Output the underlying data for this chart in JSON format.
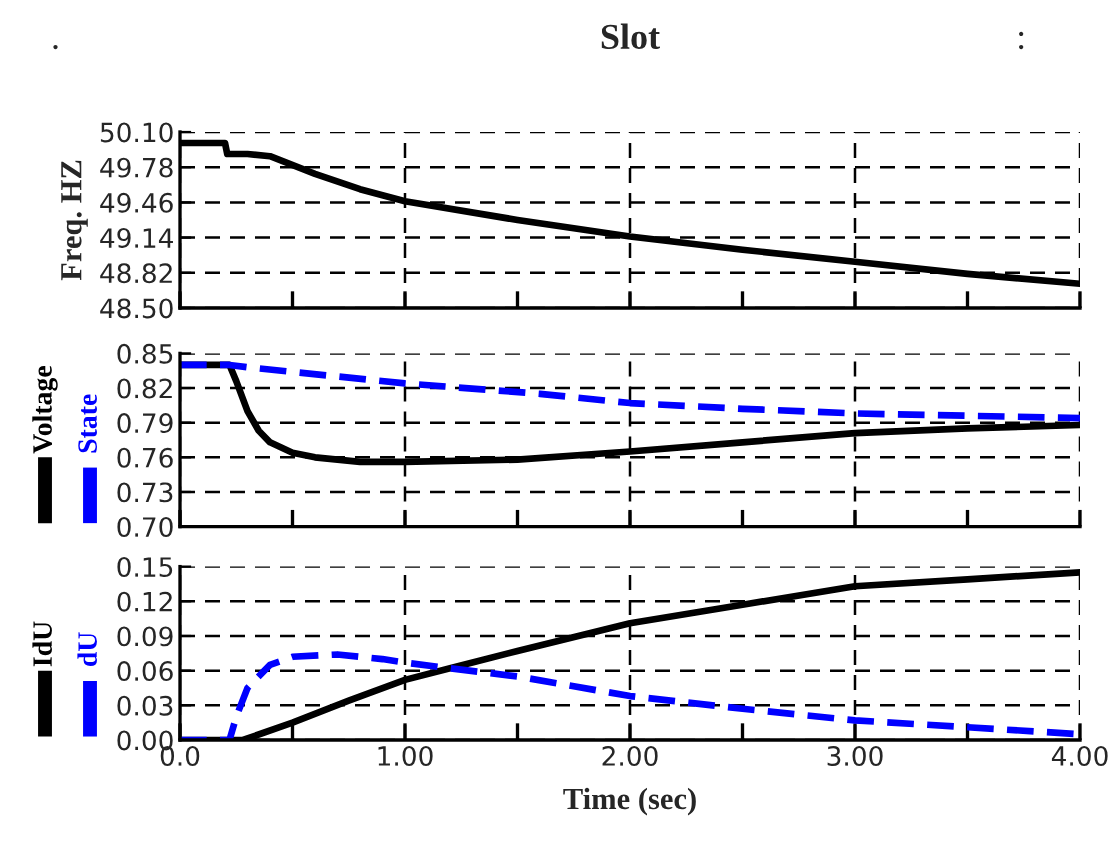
{
  "chart_data": [
    {
      "type": "line",
      "title": "Slot",
      "ylabel": "Freq. HZ",
      "annotations": [
        ".",
        ":"
      ],
      "tick_labels": "y",
      "grid": true,
      "xlim": [
        0,
        4
      ],
      "xticks": [
        {
          "value": 0,
          "label": null
        },
        {
          "value": 0.5,
          "label": null
        },
        {
          "value": 1,
          "label": null
        },
        {
          "value": 1.5,
          "label": null
        },
        {
          "value": 2,
          "label": null
        },
        {
          "value": 2.5,
          "label": null
        },
        {
          "value": 3,
          "label": null
        },
        {
          "value": 3.5,
          "label": null
        },
        {
          "value": 4,
          "label": null
        }
      ],
      "ylim": [
        48.5,
        50.1
      ],
      "yticks": [
        {
          "value": 48.5,
          "label": "48.50"
        },
        {
          "value": 48.82,
          "label": "48.82"
        },
        {
          "value": 49.14,
          "label": "49.14"
        },
        {
          "value": 49.46,
          "label": "49.46"
        },
        {
          "value": 49.78,
          "label": "49.78"
        },
        {
          "value": 50.1,
          "label": "50.10"
        }
      ],
      "series": [
        {
          "color": "#000000",
          "line_style": "solid",
          "x": [
            0,
            0.2,
            0.21,
            0.3,
            0.4,
            0.6,
            0.8,
            1.0,
            1.5,
            2.0,
            2.5,
            3.0,
            3.5,
            4.0
          ],
          "values": [
            50.0,
            50.0,
            49.9,
            49.9,
            49.88,
            49.72,
            49.58,
            49.47,
            49.3,
            49.15,
            49.03,
            48.92,
            48.81,
            48.72
          ]
        }
      ]
    },
    {
      "type": "line",
      "legend": "left",
      "tick_labels": "y",
      "grid": true,
      "xlim": [
        0,
        4
      ],
      "xticks": [
        {
          "value": 0,
          "label": null
        },
        {
          "value": 0.5,
          "label": null
        },
        {
          "value": 1,
          "label": null
        },
        {
          "value": 1.5,
          "label": null
        },
        {
          "value": 2,
          "label": null
        },
        {
          "value": 2.5,
          "label": null
        },
        {
          "value": 3,
          "label": null
        },
        {
          "value": 3.5,
          "label": null
        },
        {
          "value": 4,
          "label": null
        }
      ],
      "ylim": [
        0.7,
        0.85
      ],
      "yticks": [
        {
          "value": 0.7,
          "label": "0.70"
        },
        {
          "value": 0.73,
          "label": "0.73"
        },
        {
          "value": 0.76,
          "label": "0.76"
        },
        {
          "value": 0.79,
          "label": "0.79"
        },
        {
          "value": 0.82,
          "label": "0.82"
        },
        {
          "value": 0.85,
          "label": "0.85"
        }
      ],
      "series": [
        {
          "name": "Voltage",
          "color": "#000000",
          "line_style": "solid",
          "x": [
            0,
            0.22,
            0.25,
            0.3,
            0.35,
            0.4,
            0.5,
            0.6,
            0.8,
            1.0,
            1.5,
            2.0,
            2.5,
            3.0,
            3.5,
            4.0
          ],
          "values": [
            0.84,
            0.84,
            0.826,
            0.8,
            0.783,
            0.773,
            0.764,
            0.76,
            0.756,
            0.756,
            0.758,
            0.765,
            0.773,
            0.781,
            0.785,
            0.788
          ]
        },
        {
          "name": "State",
          "color": "#0000ff",
          "line_style": "dashed",
          "x": [
            0,
            0.22,
            0.3,
            0.5,
            1.0,
            1.6,
            2.0,
            2.5,
            3.0,
            3.5,
            4.0
          ],
          "values": [
            0.84,
            0.84,
            0.838,
            0.834,
            0.824,
            0.815,
            0.807,
            0.802,
            0.798,
            0.796,
            0.794
          ]
        }
      ]
    },
    {
      "type": "line",
      "legend": "left",
      "xlabel": "Time (sec)",
      "grid": true,
      "xlim": [
        0,
        4
      ],
      "xticks": [
        {
          "value": 0,
          "label": "0.0"
        },
        {
          "value": 0.5,
          "label": null
        },
        {
          "value": 1,
          "label": "1.00"
        },
        {
          "value": 1.5,
          "label": null
        },
        {
          "value": 2,
          "label": "2.00"
        },
        {
          "value": 2.5,
          "label": null
        },
        {
          "value": 3,
          "label": "3.00"
        },
        {
          "value": 3.5,
          "label": null
        },
        {
          "value": 4,
          "label": "4.00"
        }
      ],
      "ylim": [
        0,
        0.15
      ],
      "yticks": [
        {
          "value": 0,
          "label": "0.00"
        },
        {
          "value": 0.03,
          "label": "0.03"
        },
        {
          "value": 0.06,
          "label": "0.06"
        },
        {
          "value": 0.09,
          "label": "0.09"
        },
        {
          "value": 0.12,
          "label": "0.12"
        },
        {
          "value": 0.15,
          "label": "0.15"
        }
      ],
      "series": [
        {
          "name": "IdU",
          "color": "#000000",
          "line_style": "solid",
          "x": [
            0,
            0.28,
            0.5,
            0.75,
            1.0,
            1.2,
            1.5,
            2.0,
            2.5,
            3.0,
            3.5,
            4.0
          ],
          "values": [
            0,
            0,
            0.015,
            0.034,
            0.052,
            0.062,
            0.077,
            0.101,
            0.117,
            0.133,
            0.139,
            0.145
          ]
        },
        {
          "name": "dU",
          "color": "#0000ff",
          "line_style": "dashed",
          "x": [
            0,
            0.22,
            0.25,
            0.3,
            0.4,
            0.5,
            0.7,
            0.9,
            1.0,
            1.2,
            1.5,
            2.0,
            2.5,
            3.0,
            3.5,
            4.0
          ],
          "values": [
            0,
            0,
            0.02,
            0.045,
            0.065,
            0.072,
            0.074,
            0.07,
            0.067,
            0.062,
            0.055,
            0.038,
            0.027,
            0.017,
            0.011,
            0.005
          ]
        }
      ]
    }
  ]
}
